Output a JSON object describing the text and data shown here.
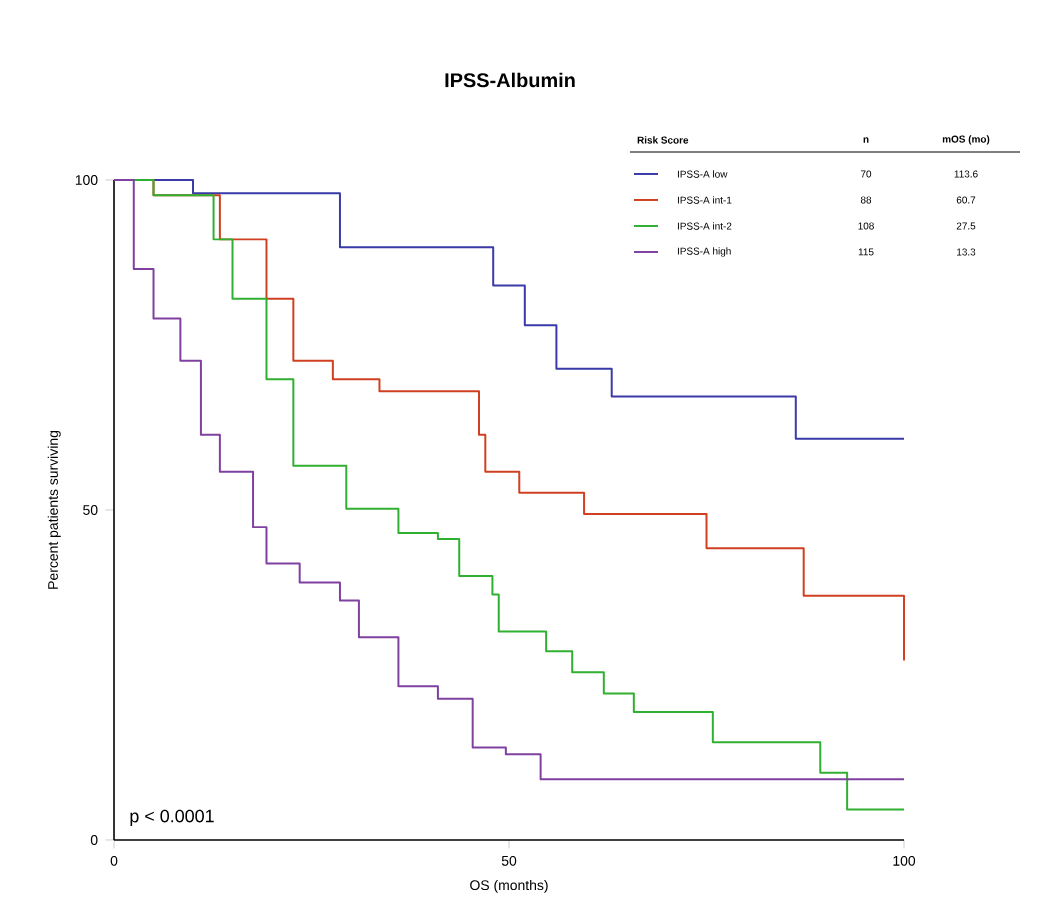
{
  "chart_data": {
    "type": "step",
    "title": "IPSS-Albumin",
    "xlabel": "OS (months)",
    "ylabel": "Percent patients surviving",
    "xlim": [
      0,
      100
    ],
    "ylim": [
      0,
      100
    ],
    "xticks": [
      0,
      50,
      100
    ],
    "yticks": [
      0,
      50,
      100
    ],
    "grid": false,
    "legend": "top right",
    "legend_title": "Risk Score",
    "series": [
      {
        "name": "IPSS-A low",
        "color": "#3a3aa8",
        "x": [
          0,
          10,
          23.5,
          28.6,
          44.5,
          48,
          52,
          56,
          63,
          86.3,
          100
        ],
        "values": [
          100,
          98,
          98,
          89.8,
          89.8,
          84,
          78,
          71.4,
          67.2,
          60.8,
          60.8
        ]
      },
      {
        "name": "IPSS-A int-1",
        "color": "#d04020",
        "x": [
          0,
          5,
          13.4,
          19.3,
          22.7,
          27.7,
          33.6,
          46.2,
          47,
          51.3,
          59.5,
          75,
          87.3,
          100
        ],
        "values": [
          100,
          97.7,
          91,
          82,
          72.6,
          69.8,
          68,
          61.4,
          55.8,
          52.6,
          49.4,
          44.2,
          37,
          27.2
        ]
      },
      {
        "name": "IPSS-A int-2",
        "color": "#30b030",
        "x": [
          0,
          5,
          12.6,
          15,
          19.3,
          22.7,
          29.4,
          36,
          41,
          43.7,
          47.9,
          48.7,
          54.7,
          58,
          62,
          65.8,
          75.8,
          89.4,
          92.8,
          100
        ],
        "values": [
          100,
          97.7,
          91,
          82,
          69.8,
          56.7,
          50.2,
          46.5,
          45.6,
          40,
          37.2,
          31.6,
          28.6,
          25.4,
          22.2,
          19.4,
          14.8,
          10.2,
          4.6,
          4.6
        ]
      },
      {
        "name": "IPSS-A high",
        "color": "#8040a0",
        "x": [
          0,
          2.5,
          5,
          8.4,
          11,
          13.4,
          17.6,
          19.3,
          23.5,
          28.6,
          31,
          36,
          41,
          45.4,
          49.6,
          54,
          100
        ],
        "values": [
          100,
          86.5,
          79,
          72.6,
          61.4,
          55.8,
          47.4,
          41.9,
          39,
          36.3,
          30.7,
          23.3,
          21.4,
          14,
          13,
          9.2,
          9.2
        ]
      }
    ],
    "annotations": [
      "n",
      "mOS (mo)",
      "70",
      "113.6",
      "88",
      "60.7",
      "108",
      "27.5",
      "115",
      "13.3",
      "p < 0.0001"
    ]
  }
}
